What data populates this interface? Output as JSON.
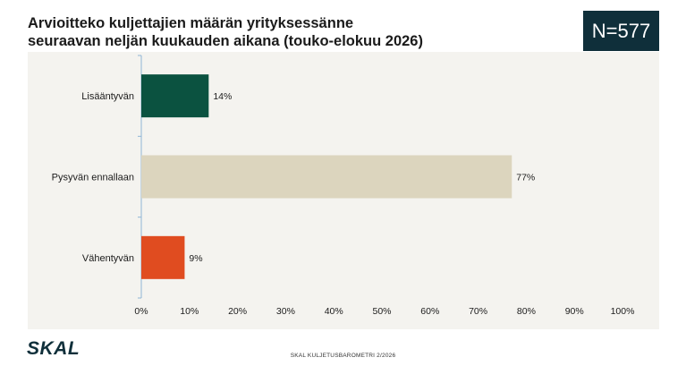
{
  "header": {
    "title_line1": "Arvioitteko kuljettajien määrän yrityksessänne",
    "title_line2": "seuraavan neljän kuukauden aikana (touko-elokuu 2026)",
    "n_label": "N=577"
  },
  "footer": {
    "logo": "SKAL",
    "source": "SKAL KULJETUSBAROMETRI 2/2026"
  },
  "chart_data": {
    "type": "bar",
    "orientation": "horizontal",
    "categories": [
      "Lisääntyvän",
      "Pysyvän ennallaan",
      "Vähentyvän"
    ],
    "values": [
      14,
      77,
      9
    ],
    "value_labels": [
      "14%",
      "77%",
      "9%"
    ],
    "colors": [
      "#0b5240",
      "#dcd5be",
      "#e04c20"
    ],
    "xlim": [
      0,
      100
    ],
    "xticks": [
      "0%",
      "10%",
      "20%",
      "30%",
      "40%",
      "50%",
      "60%",
      "70%",
      "80%",
      "90%",
      "100%"
    ],
    "grid": false
  }
}
